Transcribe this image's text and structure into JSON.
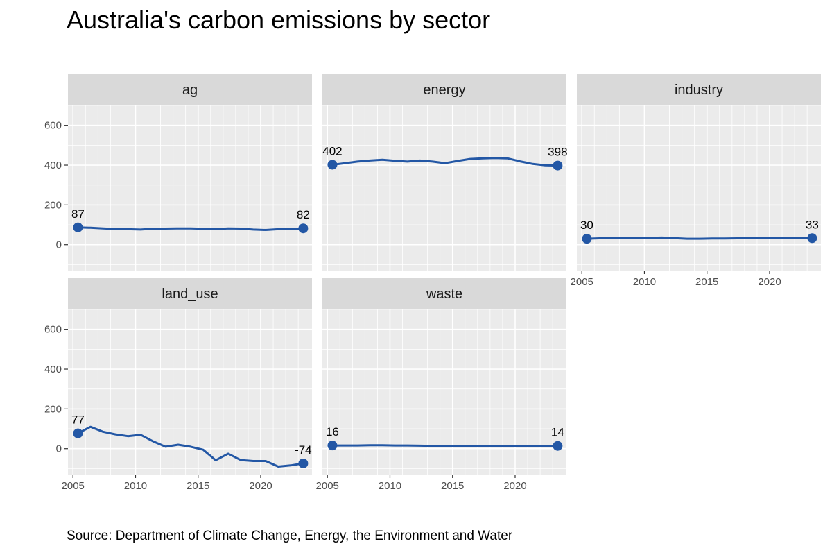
{
  "title": "Australia's carbon emissions by sector",
  "caption": "Source: Department of Climate Change, Energy, the Environment and Water",
  "colors": {
    "panel_bg": "#ebebeb",
    "strip_bg": "#d9d9d9",
    "line": "#2357a5",
    "grid": "#ffffff"
  },
  "chart_data": {
    "type": "line",
    "title": "Australia's carbon emissions by sector",
    "xlabel": "",
    "ylabel": "",
    "xlim": [
      2004.6,
      2024.1
    ],
    "ylim": [
      -130,
      700
    ],
    "x_ticks": [
      2005,
      2010,
      2015,
      2020
    ],
    "y_ticks": [
      0,
      200,
      400,
      600
    ],
    "facets": [
      {
        "name": "ag",
        "x": [
          2005.4,
          2006.4,
          2007.4,
          2008.4,
          2009.4,
          2010.4,
          2011.4,
          2012.4,
          2013.4,
          2014.4,
          2015.4,
          2016.4,
          2017.4,
          2018.4,
          2019.4,
          2020.4,
          2021.4,
          2022.4,
          2023.4
        ],
        "values": [
          87,
          85,
          82,
          79,
          78,
          76,
          80,
          81,
          82,
          82,
          80,
          78,
          82,
          81,
          76,
          74,
          78,
          79,
          82
        ],
        "start_label": "87",
        "end_label": "82"
      },
      {
        "name": "energy",
        "x": [
          2005.4,
          2006.4,
          2007.4,
          2008.4,
          2009.4,
          2010.4,
          2011.4,
          2012.4,
          2013.4,
          2014.4,
          2015.4,
          2016.4,
          2017.4,
          2018.4,
          2019.4,
          2020.4,
          2021.4,
          2022.4,
          2023.4
        ],
        "values": [
          402,
          410,
          418,
          423,
          427,
          422,
          418,
          423,
          418,
          410,
          421,
          431,
          434,
          436,
          434,
          419,
          406,
          399,
          398
        ],
        "start_label": "402",
        "end_label": "398"
      },
      {
        "name": "industry",
        "x": [
          2005.4,
          2006.4,
          2007.4,
          2008.4,
          2009.4,
          2010.4,
          2011.4,
          2012.4,
          2013.4,
          2014.4,
          2015.4,
          2016.4,
          2017.4,
          2018.4,
          2019.4,
          2020.4,
          2021.4,
          2022.4,
          2023.4
        ],
        "values": [
          30,
          32,
          34,
          34,
          32,
          35,
          36,
          33,
          30,
          30,
          31,
          31,
          32,
          33,
          34,
          33,
          33,
          33,
          33
        ],
        "start_label": "30",
        "end_label": "33"
      },
      {
        "name": "land_use",
        "x": [
          2005.4,
          2006.4,
          2007.4,
          2008.4,
          2009.4,
          2010.4,
          2011.4,
          2012.4,
          2013.4,
          2014.4,
          2015.4,
          2016.4,
          2017.4,
          2018.4,
          2019.4,
          2020.4,
          2021.4,
          2022.4,
          2023.4
        ],
        "values": [
          77,
          110,
          85,
          72,
          63,
          70,
          37,
          10,
          20,
          10,
          -5,
          -58,
          -25,
          -57,
          -62,
          -62,
          -90,
          -84,
          -74
        ],
        "start_label": "77",
        "end_label": "-74"
      },
      {
        "name": "waste",
        "x": [
          2005.4,
          2006.4,
          2007.4,
          2008.4,
          2009.4,
          2010.4,
          2011.4,
          2012.4,
          2013.4,
          2014.4,
          2015.4,
          2016.4,
          2017.4,
          2018.4,
          2019.4,
          2020.4,
          2021.4,
          2022.4,
          2023.4
        ],
        "values": [
          16,
          16,
          16,
          17,
          17,
          16,
          16,
          15,
          14,
          14,
          14,
          14,
          14,
          14,
          14,
          14,
          14,
          14,
          14
        ],
        "start_label": "16",
        "end_label": "14"
      }
    ]
  }
}
